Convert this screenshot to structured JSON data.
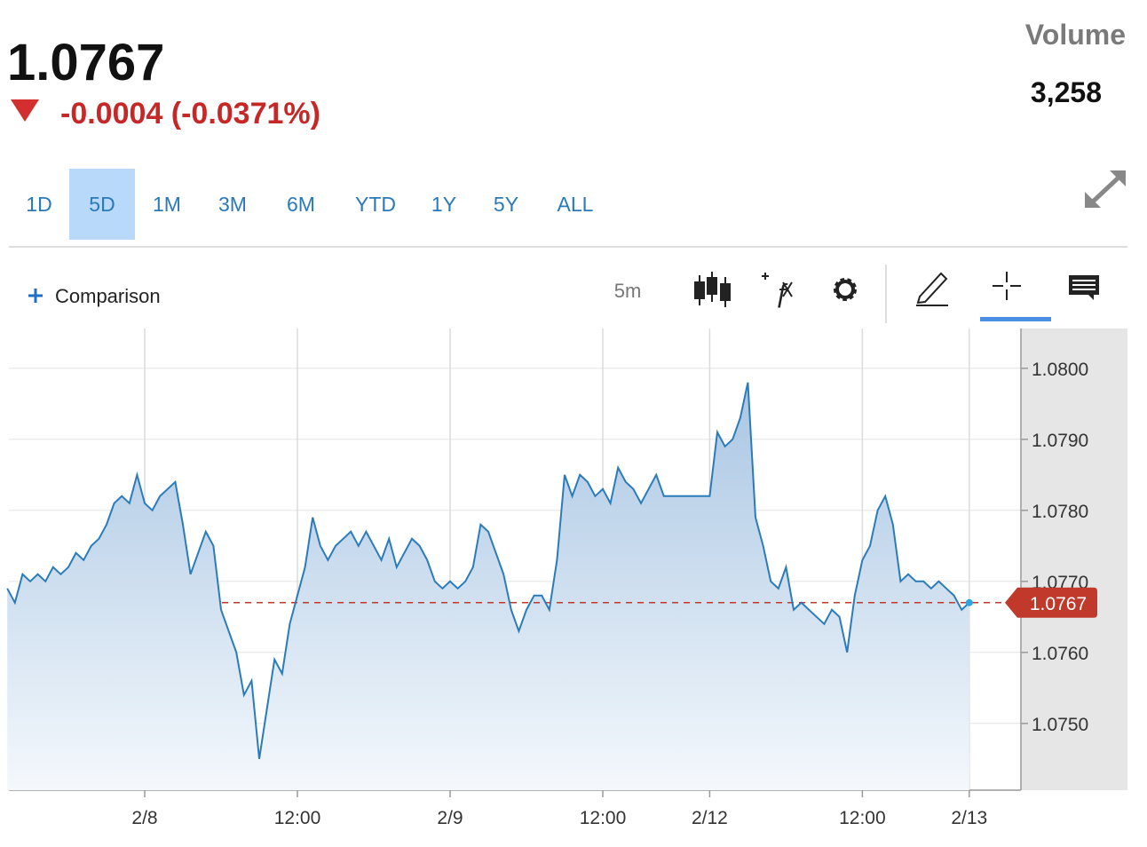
{
  "header": {
    "price": "1.0767",
    "change": "-0.0004 (-0.0371%)",
    "volume_label": "Volume",
    "volume": "3,258"
  },
  "ranges": {
    "items": [
      "1D",
      "5D",
      "1M",
      "3M",
      "6M",
      "YTD",
      "1Y",
      "5Y",
      "ALL"
    ],
    "selected": "5D"
  },
  "toolbar": {
    "comparison": "Comparison",
    "interval": "5m"
  },
  "chart_data": {
    "type": "line",
    "categories": [
      null,
      null,
      null,
      null,
      null,
      null,
      null,
      null,
      null,
      null,
      null,
      null,
      null,
      null,
      null,
      null,
      null,
      null,
      "2/8",
      null,
      null,
      null,
      null,
      null,
      null,
      null,
      null,
      null,
      null,
      null,
      null,
      null,
      null,
      null,
      null,
      null,
      null,
      null,
      "12:00",
      null,
      null,
      null,
      null,
      null,
      null,
      null,
      null,
      null,
      null,
      null,
      null,
      null,
      null,
      null,
      null,
      null,
      null,
      null,
      "2/9",
      null,
      null,
      null,
      null,
      null,
      null,
      null,
      null,
      null,
      null,
      null,
      null,
      null,
      null,
      null,
      null,
      null,
      null,
      null,
      "12:00",
      null,
      null,
      null,
      null,
      null,
      null,
      null,
      null,
      null,
      null,
      null,
      null,
      null,
      "2/12",
      null,
      null,
      null,
      null,
      null,
      null,
      null,
      null,
      null,
      null,
      null,
      null,
      null,
      null,
      null,
      null,
      null,
      null,
      null,
      "12:00",
      null,
      null,
      null,
      null,
      null,
      null,
      null,
      null,
      null,
      null,
      null,
      null,
      null,
      "2/13"
    ],
    "series": [
      {
        "color": "#2b7bba",
        "values": [
          1.0769,
          1.0767,
          1.0771,
          1.077,
          1.0771,
          1.077,
          1.0772,
          1.0771,
          1.0772,
          1.0774,
          1.0773,
          1.0775,
          1.0776,
          1.0778,
          1.0781,
          1.0782,
          1.0781,
          1.0785,
          1.0781,
          1.078,
          1.0782,
          1.0783,
          1.0784,
          1.0778,
          1.0771,
          1.0774,
          1.0777,
          1.0775,
          1.0766,
          1.0763,
          1.076,
          1.0754,
          1.0756,
          1.0745,
          1.0752,
          1.0759,
          1.0757,
          1.0764,
          1.0768,
          1.0772,
          1.0779,
          1.0775,
          1.0773,
          1.0775,
          1.0776,
          1.0777,
          1.0775,
          1.0777,
          1.0775,
          1.0773,
          1.0776,
          1.0772,
          1.0774,
          1.0776,
          1.0775,
          1.0773,
          1.077,
          1.0769,
          1.077,
          1.0769,
          1.077,
          1.0772,
          1.0778,
          1.0777,
          1.0774,
          1.0771,
          1.0766,
          1.0763,
          1.0766,
          1.0768,
          1.0768,
          1.0766,
          1.0773,
          1.0785,
          1.0782,
          1.0785,
          1.0784,
          1.0782,
          1.0783,
          1.0781,
          1.0786,
          1.0784,
          1.0783,
          1.0781,
          1.0783,
          1.0785,
          1.0782,
          1.0782,
          1.0782,
          1.0782,
          1.0782,
          1.0782,
          1.0782,
          1.0791,
          1.0789,
          1.079,
          1.0793,
          1.0798,
          1.0779,
          1.0775,
          1.077,
          1.0769,
          1.0772,
          1.0766,
          1.0767,
          1.0766,
          1.0765,
          1.0764,
          1.0766,
          1.0765,
          1.076,
          1.0768,
          1.0773,
          1.0775,
          1.078,
          1.0782,
          1.0778,
          1.077,
          1.0771,
          1.077,
          1.077,
          1.0769,
          1.077,
          1.0769,
          1.0768,
          1.0766,
          1.0767
        ]
      }
    ],
    "ylim": [
      1.07406,
      1.08056
    ],
    "yticks": [
      {
        "value": 1.075,
        "label": "1.0750"
      },
      {
        "value": 1.076,
        "label": "1.0760"
      },
      {
        "value": 1.077,
        "label": "1.0770"
      },
      {
        "value": 1.078,
        "label": "1.0780"
      },
      {
        "value": 1.079,
        "label": "1.0790"
      },
      {
        "value": 1.08,
        "label": "1.0800"
      }
    ],
    "grid": true,
    "last_price_line_color": "#c0392b"
  }
}
